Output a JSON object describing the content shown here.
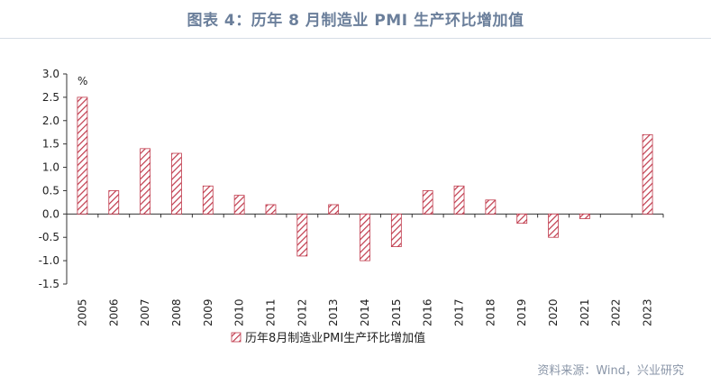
{
  "title": "图表 4：历年 8 月制造业 PMI 生产环比增加值",
  "source": "资料来源：Wind，兴业研究",
  "chart_data": {
    "type": "bar",
    "title": "图表 4：历年 8 月制造业 PMI 生产环比增加值",
    "unit": "%",
    "categories": [
      "2005",
      "2006",
      "2007",
      "2008",
      "2009",
      "2010",
      "2011",
      "2012",
      "2013",
      "2014",
      "2015",
      "2016",
      "2017",
      "2018",
      "2019",
      "2020",
      "2021",
      "2022",
      "2023"
    ],
    "series": [
      {
        "name": "历年8月制造业PMI生产环比增加值",
        "values": [
          2.5,
          0.5,
          1.4,
          1.3,
          0.6,
          0.4,
          0.2,
          -0.9,
          0.2,
          -1.0,
          -0.7,
          0.5,
          0.6,
          0.3,
          -0.2,
          -0.5,
          -0.1,
          0.0,
          1.7
        ]
      }
    ],
    "ylim": [
      -1.5,
      3.0
    ],
    "yticks": [
      "3.0",
      "2.5",
      "2.0",
      "1.5",
      "1.0",
      "0.5",
      "0.0",
      "-0.5",
      "-1.0",
      "-1.5"
    ],
    "legend_position": "bottom",
    "bar_color": "#c0394b",
    "bar_pattern": "diagonal-hatch",
    "grid": false
  }
}
